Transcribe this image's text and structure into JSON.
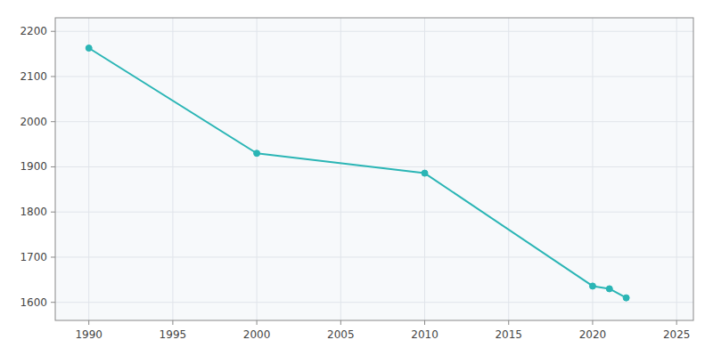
{
  "chart_data": {
    "type": "line",
    "x": [
      1990,
      2000,
      2010,
      2020,
      2021,
      2022
    ],
    "values": [
      2163,
      1930,
      1886,
      1636,
      1630,
      1610
    ],
    "color": "#2ab5b5",
    "marker": "circle",
    "xlim": [
      1988,
      2026
    ],
    "ylim": [
      1560,
      2230
    ],
    "xticks": [
      1990,
      1995,
      2000,
      2005,
      2010,
      2015,
      2020,
      2025
    ],
    "yticks": [
      1600,
      1700,
      1800,
      1900,
      2000,
      2100,
      2200
    ],
    "grid": true
  }
}
